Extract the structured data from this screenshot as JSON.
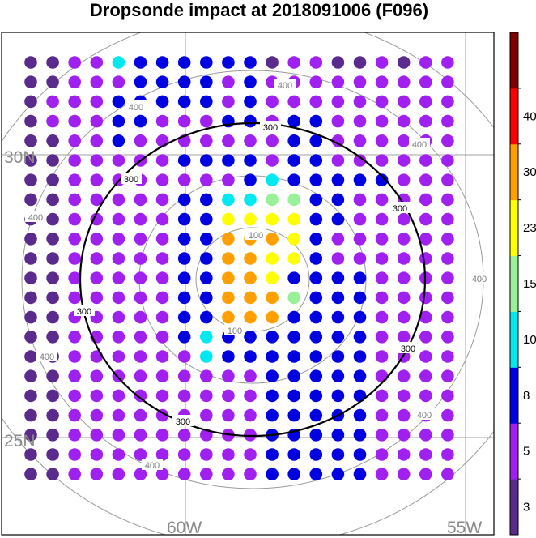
{
  "chart_data": {
    "type": "scatter",
    "title": "Dropsonde impact at 2018091006 (F096)",
    "xlabel": "",
    "ylabel": "",
    "x_ticks": [
      "60W",
      "55W"
    ],
    "y_ticks": [
      "30N",
      "25N"
    ],
    "grid": true,
    "contour_labels": {
      "inner": "100",
      "middle": "300",
      "outer": "400"
    },
    "colorbar": {
      "levels": [
        "3",
        "5",
        "8",
        "10",
        "15",
        "23",
        "30",
        "40"
      ],
      "colors": [
        "#5a2b8c",
        "#a020f0",
        "#0000e0",
        "#00e8f0",
        "#98f098",
        "#ffff00",
        "#ffa000",
        "#ff0000",
        "#800000"
      ]
    },
    "grid_points": {
      "columns": 20,
      "rows": 22,
      "category_rows": [
        "00113222222011001011",
        "00111222212111111111",
        "01112222212111111111",
        "01112211122122111111",
        "00112111111122111111",
        "00111112222122111111",
        "00111111112322222111",
        "00111112233442211111",
        "00111112255552211111",
        "00111112266652111111",
        "00111112266552111111",
        "00111112266522221111",
        "00111112266642221111",
        "00111112266622221111",
        "00111112322222221111",
        "00111111322222221111",
        "00111111111222221111",
        "00111111111222221111",
        "00111111111222221111",
        "00111111111222221111",
        "00111111111222221111",
        "00111111111222221111"
      ]
    }
  }
}
